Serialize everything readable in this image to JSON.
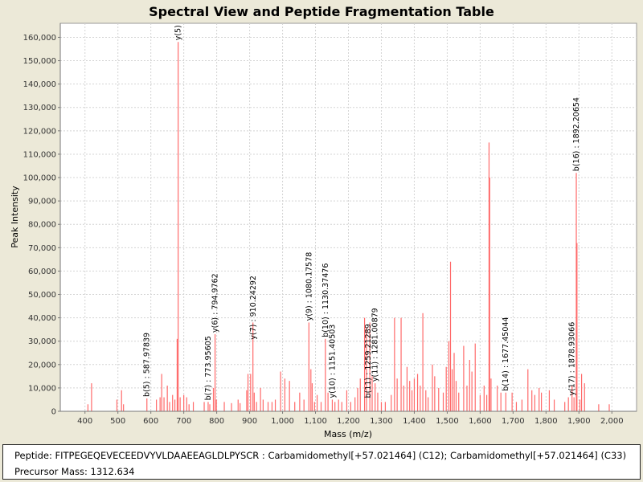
{
  "chart_data": {
    "type": "bar",
    "title": "Spectral View and Peptide Fragmentation Table",
    "xlabel": "Mass (m/z)",
    "ylabel": "Peak Intensity",
    "xlim": [
      325,
      2075
    ],
    "ylim": [
      0,
      166000
    ],
    "grid": true,
    "bar_color": "#ff6a6a",
    "x_ticks": [
      {
        "value": 400,
        "label": "400"
      },
      {
        "value": 500,
        "label": "500"
      },
      {
        "value": 600,
        "label": "600"
      },
      {
        "value": 700,
        "label": "700"
      },
      {
        "value": 800,
        "label": "800"
      },
      {
        "value": 900,
        "label": "900"
      },
      {
        "value": 1000,
        "label": "1,000"
      },
      {
        "value": 1100,
        "label": "1,100"
      },
      {
        "value": 1200,
        "label": "1,200"
      },
      {
        "value": 1300,
        "label": "1,300"
      },
      {
        "value": 1400,
        "label": "1,400"
      },
      {
        "value": 1500,
        "label": "1,500"
      },
      {
        "value": 1600,
        "label": "1,600"
      },
      {
        "value": 1700,
        "label": "1,700"
      },
      {
        "value": 1800,
        "label": "1,800"
      },
      {
        "value": 1900,
        "label": "1,900"
      },
      {
        "value": 2000,
        "label": "2,000"
      }
    ],
    "y_ticks": [
      {
        "value": 0,
        "label": "0"
      },
      {
        "value": 10000,
        "label": "10,000"
      },
      {
        "value": 20000,
        "label": "20,000"
      },
      {
        "value": 30000,
        "label": "30,000"
      },
      {
        "value": 40000,
        "label": "40,000"
      },
      {
        "value": 50000,
        "label": "50,000"
      },
      {
        "value": 60000,
        "label": "60,000"
      },
      {
        "value": 70000,
        "label": "70,000"
      },
      {
        "value": 80000,
        "label": "80,000"
      },
      {
        "value": 90000,
        "label": "90,000"
      },
      {
        "value": 100000,
        "label": "100,000"
      },
      {
        "value": 110000,
        "label": "110,000"
      },
      {
        "value": 120000,
        "label": "120,000"
      },
      {
        "value": 130000,
        "label": "130,000"
      },
      {
        "value": 140000,
        "label": "140,000"
      },
      {
        "value": 150000,
        "label": "150,000"
      },
      {
        "value": 160000,
        "label": "160,000"
      }
    ],
    "peaks": [
      {
        "mz": 409,
        "intensity": 3000
      },
      {
        "mz": 420,
        "intensity": 12000
      },
      {
        "mz": 497,
        "intensity": 5000
      },
      {
        "mz": 511,
        "intensity": 9000
      },
      {
        "mz": 517,
        "intensity": 3000
      },
      {
        "mz": 588,
        "intensity": 5500
      },
      {
        "mz": 617,
        "intensity": 5000
      },
      {
        "mz": 628,
        "intensity": 6000
      },
      {
        "mz": 633,
        "intensity": 16000
      },
      {
        "mz": 640,
        "intensity": 6000
      },
      {
        "mz": 650,
        "intensity": 11000
      },
      {
        "mz": 657,
        "intensity": 4000
      },
      {
        "mz": 666,
        "intensity": 7000
      },
      {
        "mz": 673,
        "intensity": 5000
      },
      {
        "mz": 680,
        "intensity": 31000
      },
      {
        "mz": 683,
        "intensity": 158000
      },
      {
        "mz": 689,
        "intensity": 6000
      },
      {
        "mz": 700,
        "intensity": 7000
      },
      {
        "mz": 709,
        "intensity": 6000
      },
      {
        "mz": 716,
        "intensity": 3000
      },
      {
        "mz": 729,
        "intensity": 4000
      },
      {
        "mz": 762,
        "intensity": 4000
      },
      {
        "mz": 774,
        "intensity": 4000
      },
      {
        "mz": 779,
        "intensity": 3000
      },
      {
        "mz": 790,
        "intensity": 10000
      },
      {
        "mz": 795,
        "intensity": 33000
      },
      {
        "mz": 799,
        "intensity": 5000
      },
      {
        "mz": 823,
        "intensity": 4000
      },
      {
        "mz": 845,
        "intensity": 3500
      },
      {
        "mz": 865,
        "intensity": 5000
      },
      {
        "mz": 871,
        "intensity": 3500
      },
      {
        "mz": 891,
        "intensity": 9000
      },
      {
        "mz": 895,
        "intensity": 16000
      },
      {
        "mz": 903,
        "intensity": 16000
      },
      {
        "mz": 910,
        "intensity": 38000
      },
      {
        "mz": 914,
        "intensity": 8000
      },
      {
        "mz": 921,
        "intensity": 4000
      },
      {
        "mz": 933,
        "intensity": 10000
      },
      {
        "mz": 941,
        "intensity": 5000
      },
      {
        "mz": 956,
        "intensity": 4000
      },
      {
        "mz": 968,
        "intensity": 4000
      },
      {
        "mz": 978,
        "intensity": 5000
      },
      {
        "mz": 994,
        "intensity": 17000
      },
      {
        "mz": 1007,
        "intensity": 14000
      },
      {
        "mz": 1021,
        "intensity": 13000
      },
      {
        "mz": 1037,
        "intensity": 4000
      },
      {
        "mz": 1052,
        "intensity": 8000
      },
      {
        "mz": 1065,
        "intensity": 5000
      },
      {
        "mz": 1080,
        "intensity": 38000
      },
      {
        "mz": 1086,
        "intensity": 18000
      },
      {
        "mz": 1090,
        "intensity": 12000
      },
      {
        "mz": 1097,
        "intensity": 4000
      },
      {
        "mz": 1105,
        "intensity": 7000
      },
      {
        "mz": 1117,
        "intensity": 4000
      },
      {
        "mz": 1130,
        "intensity": 31000
      },
      {
        "mz": 1138,
        "intensity": 8000
      },
      {
        "mz": 1151,
        "intensity": 5000
      },
      {
        "mz": 1159,
        "intensity": 4000
      },
      {
        "mz": 1170,
        "intensity": 5000
      },
      {
        "mz": 1180,
        "intensity": 4000
      },
      {
        "mz": 1195,
        "intensity": 9000
      },
      {
        "mz": 1207,
        "intensity": 4000
      },
      {
        "mz": 1220,
        "intensity": 6000
      },
      {
        "mz": 1228,
        "intensity": 10000
      },
      {
        "mz": 1236,
        "intensity": 14000
      },
      {
        "mz": 1249,
        "intensity": 40000
      },
      {
        "mz": 1255,
        "intensity": 36000
      },
      {
        "mz": 1265,
        "intensity": 38000
      },
      {
        "mz": 1272,
        "intensity": 15000
      },
      {
        "mz": 1281,
        "intensity": 12000
      },
      {
        "mz": 1289,
        "intensity": 8000
      },
      {
        "mz": 1300,
        "intensity": 4000
      },
      {
        "mz": 1312,
        "intensity": 4000
      },
      {
        "mz": 1330,
        "intensity": 7000
      },
      {
        "mz": 1340,
        "intensity": 40000
      },
      {
        "mz": 1348,
        "intensity": 14000
      },
      {
        "mz": 1360,
        "intensity": 40000
      },
      {
        "mz": 1368,
        "intensity": 11000
      },
      {
        "mz": 1378,
        "intensity": 19000
      },
      {
        "mz": 1386,
        "intensity": 13000
      },
      {
        "mz": 1393,
        "intensity": 9000
      },
      {
        "mz": 1400,
        "intensity": 14000
      },
      {
        "mz": 1410,
        "intensity": 16000
      },
      {
        "mz": 1418,
        "intensity": 11000
      },
      {
        "mz": 1426,
        "intensity": 42000
      },
      {
        "mz": 1435,
        "intensity": 9000
      },
      {
        "mz": 1442,
        "intensity": 6000
      },
      {
        "mz": 1455,
        "intensity": 20000
      },
      {
        "mz": 1462,
        "intensity": 15000
      },
      {
        "mz": 1474,
        "intensity": 10000
      },
      {
        "mz": 1488,
        "intensity": 8000
      },
      {
        "mz": 1497,
        "intensity": 19000
      },
      {
        "mz": 1505,
        "intensity": 30000
      },
      {
        "mz": 1510,
        "intensity": 64000
      },
      {
        "mz": 1515,
        "intensity": 18000
      },
      {
        "mz": 1521,
        "intensity": 25000
      },
      {
        "mz": 1527,
        "intensity": 13000
      },
      {
        "mz": 1535,
        "intensity": 8000
      },
      {
        "mz": 1550,
        "intensity": 28000
      },
      {
        "mz": 1560,
        "intensity": 11000
      },
      {
        "mz": 1568,
        "intensity": 22000
      },
      {
        "mz": 1575,
        "intensity": 17000
      },
      {
        "mz": 1585,
        "intensity": 29000
      },
      {
        "mz": 1600,
        "intensity": 7000
      },
      {
        "mz": 1612,
        "intensity": 11000
      },
      {
        "mz": 1620,
        "intensity": 7000
      },
      {
        "mz": 1627,
        "intensity": 115000
      },
      {
        "mz": 1629,
        "intensity": 100000
      },
      {
        "mz": 1633,
        "intensity": 14000
      },
      {
        "mz": 1652,
        "intensity": 11000
      },
      {
        "mz": 1663,
        "intensity": 8000
      },
      {
        "mz": 1678,
        "intensity": 8000
      },
      {
        "mz": 1697,
        "intensity": 8000
      },
      {
        "mz": 1710,
        "intensity": 4000
      },
      {
        "mz": 1727,
        "intensity": 5000
      },
      {
        "mz": 1745,
        "intensity": 18000
      },
      {
        "mz": 1757,
        "intensity": 9000
      },
      {
        "mz": 1766,
        "intensity": 7000
      },
      {
        "mz": 1779,
        "intensity": 10000
      },
      {
        "mz": 1786,
        "intensity": 8000
      },
      {
        "mz": 1810,
        "intensity": 9000
      },
      {
        "mz": 1825,
        "intensity": 5000
      },
      {
        "mz": 1857,
        "intensity": 4000
      },
      {
        "mz": 1868,
        "intensity": 6000
      },
      {
        "mz": 1879,
        "intensity": 11000
      },
      {
        "mz": 1885,
        "intensity": 6000
      },
      {
        "mz": 1892,
        "intensity": 102000
      },
      {
        "mz": 1894,
        "intensity": 72000
      },
      {
        "mz": 1903,
        "intensity": 5000
      },
      {
        "mz": 1908,
        "intensity": 16000
      },
      {
        "mz": 1917,
        "intensity": 12000
      },
      {
        "mz": 1960,
        "intensity": 3000
      },
      {
        "mz": 1992,
        "intensity": 3000
      }
    ],
    "annotations": [
      {
        "mz": 587.97839,
        "intensity": 5500,
        "label": "b(5) : 587.97839"
      },
      {
        "mz": 683,
        "intensity": 158000,
        "label": "y(5)"
      },
      {
        "mz": 773.95605,
        "intensity": 4000,
        "label": "b(7) : 773.95605"
      },
      {
        "mz": 794.9762,
        "intensity": 33000,
        "label": "y(6) : 794.9762"
      },
      {
        "mz": 910.24292,
        "intensity": 30000,
        "label": "y(7) : 910.24292"
      },
      {
        "mz": 1080.17578,
        "intensity": 38000,
        "label": "y(9) : 1080.17578"
      },
      {
        "mz": 1130.37476,
        "intensity": 31000,
        "label": "b(10) : 1130.37476"
      },
      {
        "mz": 1151.40503,
        "intensity": 5000,
        "label": "y(10) : 1151.40503"
      },
      {
        "mz": 1259.21289,
        "intensity": 5000,
        "label": "b(11) : 1259.21289"
      },
      {
        "mz": 1281.00879,
        "intensity": 12000,
        "label": "y(11) : 1281.00879"
      },
      {
        "mz": 1677.45044,
        "intensity": 8000,
        "label": "b(14) : 1677.45044"
      },
      {
        "mz": 1878.93066,
        "intensity": 6000,
        "label": "y(17) : 1878.93066"
      },
      {
        "mz": 1892.20654,
        "intensity": 102000,
        "label": "b(16) : 1892.20654"
      }
    ]
  },
  "info": {
    "peptide": "Peptide: FITPEGEQEVECEEDVYVLDAAEEAGLDLPYSCR : Carbamidomethyl[+57.021464] (C12); Carbamidomethyl[+57.021464] (C33)",
    "precursor": "Precursor Mass: 1312.634"
  }
}
